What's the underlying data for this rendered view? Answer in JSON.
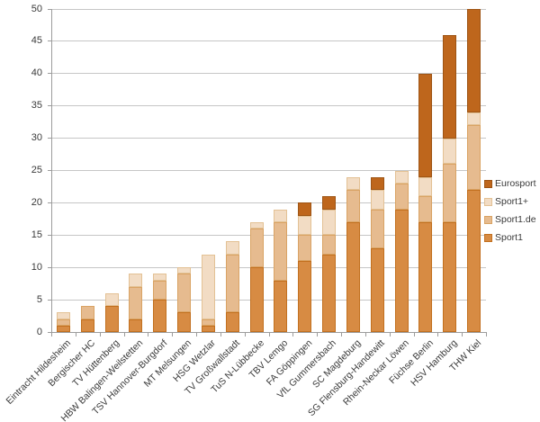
{
  "chart_data": {
    "type": "bar",
    "stacked": true,
    "title": "",
    "xlabel": "",
    "ylabel": "",
    "categories": [
      "Eintracht Hildesheim",
      "Bergischer HC",
      "TV Hüttenberg",
      "HBW Balingen-Weilstetten",
      "TSV Hannover-Burgdorf",
      "MT Melsungen",
      "HSG Wetzlar",
      "TV Großwallstadt",
      "TuS N-Lübbecke",
      "TBV Lemgo",
      "FA Göppingen",
      "VfL Gummersbach",
      "SC Magdeburg",
      "SG Flensburg-Handewitt",
      "Rhein-Neckar Löwen",
      "Füchse Berlin",
      "HSV Hamburg",
      "THW Kiel"
    ],
    "series": [
      {
        "name": "Sport1",
        "color": "#D78B43",
        "border": "#C2701F",
        "values": [
          1,
          2,
          4,
          2,
          5,
          3,
          1,
          3,
          10,
          8,
          11,
          12,
          17,
          13,
          19,
          17,
          17,
          22
        ]
      },
      {
        "name": "Sport1.de",
        "color": "#E6BB8F",
        "border": "#D9A364",
        "values": [
          1,
          2,
          0,
          5,
          3,
          6,
          1,
          9,
          6,
          9,
          4,
          3,
          5,
          6,
          4,
          4,
          9,
          10
        ]
      },
      {
        "name": "Sport1+",
        "color": "#F2DCC4",
        "border": "#E3C194",
        "values": [
          1,
          0,
          2,
          2,
          1,
          1,
          10,
          2,
          1,
          2,
          3,
          4,
          2,
          3,
          2,
          3,
          4,
          2
        ]
      },
      {
        "name": "Eurosport",
        "color": "#BE661C",
        "border": "#9E5414",
        "values": [
          0,
          0,
          0,
          0,
          0,
          0,
          0,
          0,
          0,
          0,
          2,
          2,
          0,
          2,
          0,
          16,
          16,
          16
        ]
      }
    ],
    "totals": [
      3,
      4,
      6,
      9,
      9,
      10,
      12,
      14,
      17,
      19,
      20,
      21,
      24,
      24,
      25,
      40,
      46,
      50
    ],
    "legend": [
      "Eurosport",
      "Sport1+",
      "Sport1.de",
      "Sport1"
    ],
    "legend_position": "right",
    "ylim": [
      0,
      50
    ],
    "yticks": [
      0,
      5,
      10,
      15,
      20,
      25,
      30,
      35,
      40,
      45,
      50
    ],
    "grid": true,
    "colors": {
      "gridline": "#C6C6C6",
      "axis_line": "#9C9C9C",
      "tick_mark": "#9C9C9C",
      "axis_text": "#3A3A3A",
      "legend_text": "#3A3A3A",
      "background": "#FFFFFF"
    }
  }
}
